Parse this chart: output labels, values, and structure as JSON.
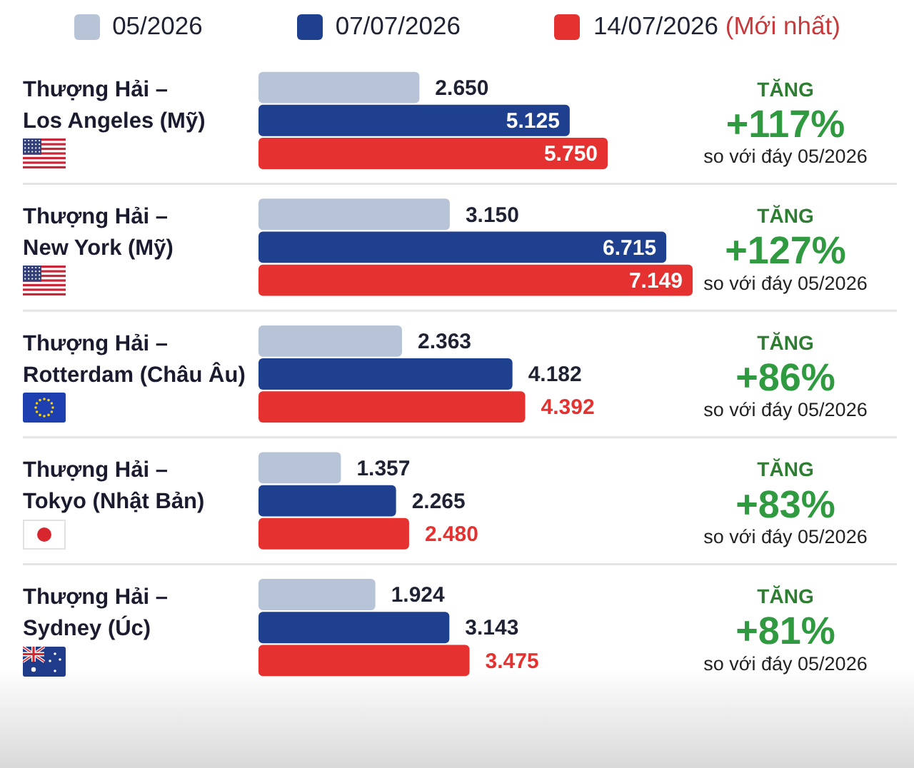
{
  "chart_data": {
    "type": "bar",
    "orientation": "horizontal",
    "categories": [
      "Thượng Hải – Los Angeles (Mỹ)",
      "Thượng Hải – New York (Mỹ)",
      "Thượng Hải – Rotterdam (Châu Âu)",
      "Thượng Hải – Tokyo (Nhật Bản)",
      "Thượng Hải – Sydney (Úc)"
    ],
    "series": [
      {
        "name": "05/2026",
        "color": "#b7c3d6",
        "values": [
          2650,
          3150,
          2363,
          1357,
          1924
        ],
        "value_labels": [
          "2.650",
          "3.150",
          "2.363",
          "1.357",
          "1.924"
        ]
      },
      {
        "name": "07/07/2026",
        "color": "#1f3f8f",
        "values": [
          5125,
          6715,
          4182,
          2265,
          3143
        ],
        "value_labels": [
          "5.125",
          "6.715",
          "4.182",
          "2.265",
          "3.143"
        ]
      },
      {
        "name": "14/07/2026 (Mới nhất)",
        "color": "#e5312f",
        "values": [
          5750,
          7149,
          4392,
          2480,
          3475
        ],
        "value_labels": [
          "5.750",
          "7.149",
          "4.392",
          "2.480",
          "3.475"
        ]
      }
    ],
    "annotations": [
      "TĂNG",
      "+117%",
      "so với đáy 05/2026",
      "TĂNG",
      "+127%",
      "so với đáy 05/2026",
      "TĂNG",
      "+86%",
      "so với đáy 05/2026",
      "TĂNG",
      "+83%",
      "so với đáy 05/2026",
      "TĂNG",
      "+81%",
      "so với đáy 05/2026"
    ],
    "legend": "top",
    "grid": "y",
    "tick_labels": "y"
  }
}
